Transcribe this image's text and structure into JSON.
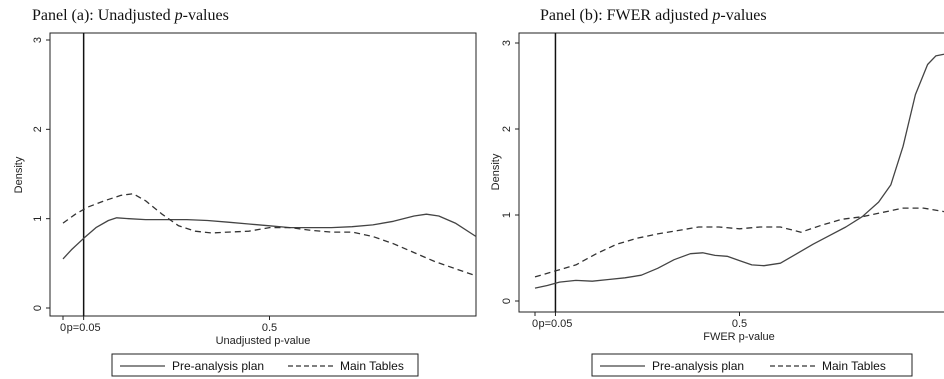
{
  "chart_data": [
    {
      "type": "line",
      "title_prefix": "Panel (a): Unadjusted ",
      "title_italic": "p",
      "title_suffix": "-values",
      "xlabel": "Unadjusted p-value",
      "ylabel": "Density",
      "xlim": [
        0,
        1
      ],
      "ylim": [
        0,
        3
      ],
      "x_ticks": [
        {
          "value": 0,
          "label": "0"
        },
        {
          "value": 0.5,
          "label": "0.5"
        }
      ],
      "y_ticks": [
        {
          "value": 0,
          "label": "0"
        },
        {
          "value": 1,
          "label": "1"
        },
        {
          "value": 2,
          "label": "2"
        },
        {
          "value": 3,
          "label": "3"
        }
      ],
      "vline": {
        "x": 0.05,
        "label": "p=0.05"
      },
      "grid": false,
      "legend_position": "bottom",
      "series": [
        {
          "name": "Pre-analysis plan",
          "style": "solid",
          "color": "#444444",
          "x": [
            0,
            0.02,
            0.05,
            0.08,
            0.11,
            0.13,
            0.16,
            0.2,
            0.25,
            0.3,
            0.35,
            0.4,
            0.45,
            0.5,
            0.55,
            0.6,
            0.65,
            0.7,
            0.75,
            0.8,
            0.85,
            0.88,
            0.91,
            0.95,
            1.0
          ],
          "y": [
            0.55,
            0.65,
            0.78,
            0.9,
            0.98,
            1.01,
            1.0,
            0.99,
            0.99,
            0.99,
            0.98,
            0.96,
            0.94,
            0.92,
            0.9,
            0.9,
            0.9,
            0.91,
            0.93,
            0.97,
            1.03,
            1.05,
            1.03,
            0.95,
            0.8
          ]
        },
        {
          "name": "Main Tables",
          "style": "dashed",
          "color": "#333333",
          "x": [
            0,
            0.03,
            0.06,
            0.1,
            0.14,
            0.17,
            0.2,
            0.24,
            0.28,
            0.32,
            0.36,
            0.4,
            0.45,
            0.5,
            0.55,
            0.6,
            0.65,
            0.7,
            0.75,
            0.8,
            0.85,
            0.9,
            0.95,
            1.0
          ],
          "y": [
            0.95,
            1.05,
            1.13,
            1.2,
            1.26,
            1.28,
            1.2,
            1.05,
            0.92,
            0.86,
            0.84,
            0.85,
            0.86,
            0.9,
            0.9,
            0.87,
            0.85,
            0.85,
            0.8,
            0.72,
            0.62,
            0.52,
            0.44,
            0.36
          ]
        }
      ]
    },
    {
      "type": "line",
      "title_prefix": "Panel (b): FWER adjusted ",
      "title_italic": "p",
      "title_suffix": "-values",
      "xlabel": "FWER p-value",
      "ylabel": "Density",
      "xlim": [
        0,
        1
      ],
      "ylim": [
        0,
        3
      ],
      "x_ticks": [
        {
          "value": 0,
          "label": "0"
        },
        {
          "value": 0.5,
          "label": "0.5"
        }
      ],
      "y_ticks": [
        {
          "value": 0,
          "label": "0"
        },
        {
          "value": 1,
          "label": "1"
        },
        {
          "value": 2,
          "label": "2"
        },
        {
          "value": 3,
          "label": "3"
        }
      ],
      "vline": {
        "x": 0.05,
        "label": "p=0.05"
      },
      "grid": false,
      "legend_position": "bottom",
      "series": [
        {
          "name": "Pre-analysis plan",
          "style": "solid",
          "color": "#444444",
          "x": [
            0,
            0.03,
            0.06,
            0.1,
            0.14,
            0.18,
            0.22,
            0.26,
            0.3,
            0.34,
            0.38,
            0.41,
            0.44,
            0.47,
            0.5,
            0.53,
            0.56,
            0.6,
            0.64,
            0.68,
            0.72,
            0.76,
            0.8,
            0.84,
            0.87,
            0.9,
            0.93,
            0.96,
            0.98,
            1.0
          ],
          "y": [
            0.15,
            0.18,
            0.22,
            0.24,
            0.23,
            0.25,
            0.27,
            0.3,
            0.38,
            0.48,
            0.55,
            0.56,
            0.53,
            0.52,
            0.47,
            0.42,
            0.41,
            0.44,
            0.55,
            0.66,
            0.76,
            0.86,
            0.98,
            1.15,
            1.35,
            1.8,
            2.4,
            2.75,
            2.85,
            2.87
          ]
        },
        {
          "name": "Main Tables",
          "style": "dashed",
          "color": "#333333",
          "x": [
            0,
            0.05,
            0.1,
            0.15,
            0.2,
            0.25,
            0.3,
            0.35,
            0.4,
            0.45,
            0.5,
            0.55,
            0.6,
            0.65,
            0.7,
            0.75,
            0.8,
            0.85,
            0.9,
            0.95,
            1.0
          ],
          "y": [
            0.28,
            0.35,
            0.42,
            0.55,
            0.66,
            0.73,
            0.78,
            0.82,
            0.86,
            0.86,
            0.84,
            0.86,
            0.86,
            0.8,
            0.88,
            0.95,
            0.98,
            1.03,
            1.08,
            1.08,
            1.04
          ]
        }
      ]
    }
  ]
}
